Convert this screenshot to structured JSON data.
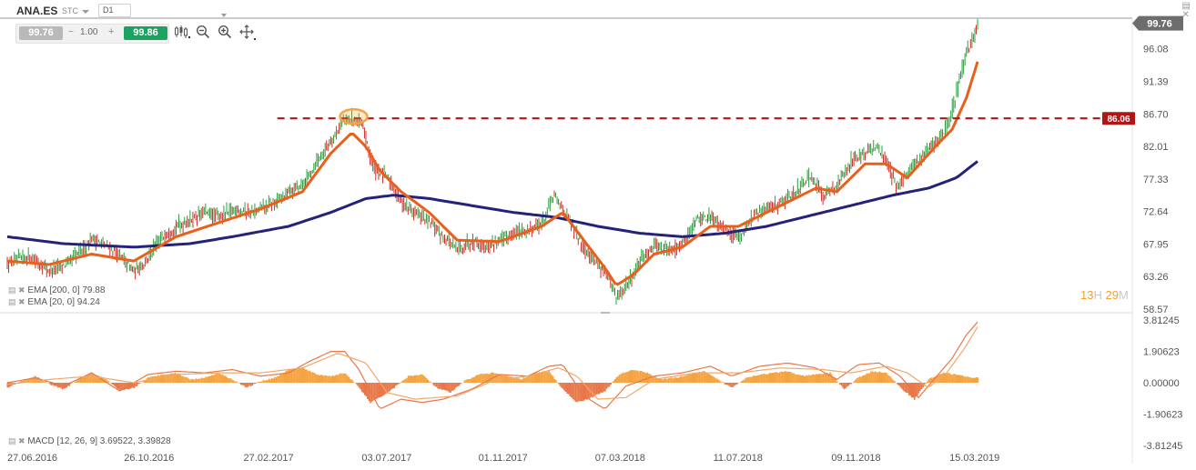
{
  "header": {
    "symbol": "ANA.ES",
    "type": "STC",
    "timeframe": "D1"
  },
  "trade": {
    "bid": "99.76",
    "minus": "−",
    "lot": "1.00",
    "plus": "+",
    "ask": "99.86"
  },
  "tools": [
    "candles-icon",
    "zoom-out-icon",
    "zoom-in-icon",
    "move-icon"
  ],
  "indicators": {
    "ema200_label": "EMA [200, 0] 79.88",
    "ema20_label": "EMA [20, 0] 94.24",
    "macd_label": "MACD [12, 26, 9] 3.69522, 3.39828"
  },
  "timer": {
    "hours": "13",
    "h": "H",
    "minutes": "29",
    "m": "M"
  },
  "colors": {
    "price_badge": "#6d6d6d",
    "level_badge": "#b11616",
    "ema20": "#e8601c",
    "ema200": "#24237a",
    "bull": "#2e9e3e",
    "bear": "#c8302a",
    "macd_pos": "#f4a340",
    "macd_neg": "#e8774a"
  },
  "chart_data": [
    {
      "type": "candlestick",
      "title": "ANA.ES D1",
      "y_ticks": [
        99.76,
        96.08,
        91.39,
        86.7,
        82.01,
        77.33,
        72.64,
        67.95,
        63.26,
        58.57
      ],
      "y_tick_labels": [
        "99.76",
        "96.08",
        "91.39",
        "86.70",
        "82.01",
        "77.33",
        "72.64",
        "67.95",
        "63.26",
        "58.57"
      ],
      "ylim": [
        58.57,
        100.5
      ],
      "x_tick_labels": [
        "27.06.2016",
        "26.10.2016",
        "27.02.2017",
        "03.07.2017",
        "01.11.2017",
        "07.03.2018",
        "11.07.2018",
        "09.11.2018",
        "15.03.2019"
      ],
      "current_price": 99.76,
      "current_price_label": "99.76",
      "level": 86.06,
      "level_label": "86.06",
      "price_path": [
        [
          0,
          65.0
        ],
        [
          15,
          66.2
        ],
        [
          30,
          64.0
        ],
        [
          45,
          65.5
        ],
        [
          60,
          68.8
        ],
        [
          75,
          67.0
        ],
        [
          90,
          64.0
        ],
        [
          100,
          66.0
        ],
        [
          112,
          69.5
        ],
        [
          125,
          71.0
        ],
        [
          140,
          72.5
        ],
        [
          150,
          71.8
        ],
        [
          162,
          73.0
        ],
        [
          175,
          72.5
        ],
        [
          190,
          74.0
        ],
        [
          200,
          75.5
        ],
        [
          210,
          76.5
        ],
        [
          220,
          80.0
        ],
        [
          230,
          83.0
        ],
        [
          238,
          85.5
        ],
        [
          245,
          86.06
        ],
        [
          252,
          85.0
        ],
        [
          260,
          79.0
        ],
        [
          270,
          77.5
        ],
        [
          280,
          74.0
        ],
        [
          290,
          72.5
        ],
        [
          300,
          71.0
        ],
        [
          310,
          69.0
        ],
        [
          320,
          67.0
        ],
        [
          330,
          68.5
        ],
        [
          340,
          67.5
        ],
        [
          350,
          68.5
        ],
        [
          360,
          69.5
        ],
        [
          370,
          70.0
        ],
        [
          380,
          71.0
        ],
        [
          388,
          75.0
        ],
        [
          395,
          73.0
        ],
        [
          405,
          69.0
        ],
        [
          415,
          66.0
        ],
        [
          425,
          64.0
        ],
        [
          433,
          60.0
        ],
        [
          440,
          62.0
        ],
        [
          450,
          65.5
        ],
        [
          460,
          68.0
        ],
        [
          470,
          67.0
        ],
        [
          480,
          68.0
        ],
        [
          490,
          71.5
        ],
        [
          500,
          72.0
        ],
        [
          510,
          70.0
        ],
        [
          520,
          69.0
        ],
        [
          530,
          72.0
        ],
        [
          540,
          73.0
        ],
        [
          550,
          74.0
        ],
        [
          560,
          75.5
        ],
        [
          570,
          77.5
        ],
        [
          580,
          75.0
        ],
        [
          590,
          76.5
        ],
        [
          600,
          80.0
        ],
        [
          610,
          81.0
        ],
        [
          618,
          82.0
        ],
        [
          625,
          80.0
        ],
        [
          632,
          76.0
        ],
        [
          640,
          78.0
        ],
        [
          648,
          80.0
        ],
        [
          655,
          82.0
        ],
        [
          662,
          83.0
        ],
        [
          670,
          86.0
        ],
        [
          675,
          90.0
        ],
        [
          680,
          94.0
        ],
        [
          686,
          97.5
        ],
        [
          690,
          99.76
        ]
      ],
      "ema20_path": [
        [
          0,
          65.5
        ],
        [
          30,
          65.0
        ],
        [
          60,
          66.5
        ],
        [
          90,
          65.5
        ],
        [
          120,
          69.0
        ],
        [
          150,
          71.0
        ],
        [
          180,
          73.0
        ],
        [
          210,
          75.5
        ],
        [
          230,
          81.0
        ],
        [
          245,
          84.0
        ],
        [
          255,
          82.0
        ],
        [
          265,
          78.5
        ],
        [
          280,
          75.5
        ],
        [
          300,
          72.5
        ],
        [
          320,
          68.5
        ],
        [
          350,
          68.3
        ],
        [
          380,
          70.5
        ],
        [
          395,
          72.5
        ],
        [
          410,
          68.5
        ],
        [
          425,
          64.5
        ],
        [
          433,
          62.0
        ],
        [
          445,
          63.5
        ],
        [
          460,
          66.5
        ],
        [
          480,
          67.5
        ],
        [
          500,
          70.5
        ],
        [
          520,
          70.5
        ],
        [
          550,
          73.5
        ],
        [
          575,
          76.0
        ],
        [
          590,
          75.5
        ],
        [
          610,
          79.5
        ],
        [
          625,
          79.5
        ],
        [
          640,
          77.5
        ],
        [
          660,
          82.0
        ],
        [
          672,
          84.5
        ],
        [
          682,
          89.0
        ],
        [
          690,
          94.24
        ]
      ],
      "ema200_path": [
        [
          0,
          69.0
        ],
        [
          40,
          68.0
        ],
        [
          90,
          67.5
        ],
        [
          130,
          68.0
        ],
        [
          160,
          69.0
        ],
        [
          200,
          70.5
        ],
        [
          230,
          72.5
        ],
        [
          255,
          74.5
        ],
        [
          275,
          75.0
        ],
        [
          300,
          74.5
        ],
        [
          330,
          73.5
        ],
        [
          360,
          72.5
        ],
        [
          390,
          71.8
        ],
        [
          420,
          70.5
        ],
        [
          450,
          69.5
        ],
        [
          480,
          69.0
        ],
        [
          510,
          69.5
        ],
        [
          540,
          70.5
        ],
        [
          570,
          72.0
        ],
        [
          600,
          73.5
        ],
        [
          630,
          75.0
        ],
        [
          655,
          76.0
        ],
        [
          675,
          77.5
        ],
        [
          690,
          79.88
        ]
      ]
    },
    {
      "type": "histogram+line",
      "title": "MACD [12, 26, 9]",
      "y_ticks": [
        3.81245,
        1.90623,
        0.0,
        -1.90623,
        -3.81245
      ],
      "y_tick_labels": [
        "3.81245",
        "1.90623",
        "0.00000",
        "-1.90623",
        "-3.81245"
      ],
      "ylim": [
        -3.81245,
        3.81245
      ],
      "macd_last": 3.69522,
      "signal_last": 3.39828,
      "macd_path": [
        [
          0,
          0.0
        ],
        [
          20,
          0.3
        ],
        [
          40,
          -0.2
        ],
        [
          60,
          0.6
        ],
        [
          80,
          -0.5
        ],
        [
          100,
          0.5
        ],
        [
          120,
          0.7
        ],
        [
          140,
          0.6
        ],
        [
          160,
          0.8
        ],
        [
          180,
          0.4
        ],
        [
          200,
          0.6
        ],
        [
          215,
          1.3
        ],
        [
          230,
          1.9
        ],
        [
          240,
          1.9
        ],
        [
          250,
          0.8
        ],
        [
          265,
          -1.6
        ],
        [
          280,
          -1.0
        ],
        [
          295,
          -1.2
        ],
        [
          310,
          -1.0
        ],
        [
          330,
          -0.4
        ],
        [
          350,
          0.5
        ],
        [
          370,
          0.4
        ],
        [
          385,
          1.0
        ],
        [
          395,
          1.1
        ],
        [
          410,
          -0.8
        ],
        [
          425,
          -1.6
        ],
        [
          440,
          -0.2
        ],
        [
          460,
          0.4
        ],
        [
          480,
          0.6
        ],
        [
          500,
          1.0
        ],
        [
          515,
          0.4
        ],
        [
          535,
          1.0
        ],
        [
          555,
          1.2
        ],
        [
          575,
          0.9
        ],
        [
          590,
          0.2
        ],
        [
          605,
          1.1
        ],
        [
          620,
          1.2
        ],
        [
          635,
          0.4
        ],
        [
          648,
          -0.9
        ],
        [
          660,
          0.3
        ],
        [
          672,
          1.5
        ],
        [
          682,
          2.9
        ],
        [
          690,
          3.69522
        ]
      ],
      "signal_path": [
        [
          0,
          -0.1
        ],
        [
          30,
          0.2
        ],
        [
          60,
          0.4
        ],
        [
          90,
          0.0
        ],
        [
          120,
          0.5
        ],
        [
          150,
          0.6
        ],
        [
          180,
          0.6
        ],
        [
          210,
          0.9
        ],
        [
          235,
          1.8
        ],
        [
          255,
          1.2
        ],
        [
          270,
          -0.6
        ],
        [
          290,
          -1.0
        ],
        [
          320,
          -0.8
        ],
        [
          345,
          0.1
        ],
        [
          370,
          0.4
        ],
        [
          392,
          0.9
        ],
        [
          405,
          0.4
        ],
        [
          420,
          -1.0
        ],
        [
          440,
          -0.9
        ],
        [
          460,
          0.2
        ],
        [
          490,
          0.6
        ],
        [
          520,
          0.6
        ],
        [
          550,
          0.9
        ],
        [
          580,
          0.8
        ],
        [
          600,
          0.6
        ],
        [
          625,
          1.0
        ],
        [
          640,
          0.6
        ],
        [
          655,
          -0.3
        ],
        [
          668,
          0.6
        ],
        [
          680,
          2.0
        ],
        [
          690,
          3.39828
        ]
      ],
      "histogram_points": [
        [
          0,
          -0.3
        ],
        [
          10,
          0.1
        ],
        [
          20,
          0.4
        ],
        [
          30,
          -0.1
        ],
        [
          40,
          -0.4
        ],
        [
          50,
          0.2
        ],
        [
          60,
          0.6
        ],
        [
          70,
          0.2
        ],
        [
          80,
          -0.5
        ],
        [
          90,
          -0.3
        ],
        [
          100,
          0.3
        ],
        [
          110,
          0.5
        ],
        [
          120,
          0.6
        ],
        [
          130,
          0.2
        ],
        [
          140,
          0.3
        ],
        [
          150,
          0.6
        ],
        [
          160,
          0.2
        ],
        [
          170,
          -0.3
        ],
        [
          180,
          0.1
        ],
        [
          190,
          0.3
        ],
        [
          200,
          0.8
        ],
        [
          210,
          0.9
        ],
        [
          220,
          0.5
        ],
        [
          230,
          0.4
        ],
        [
          240,
          0.6
        ],
        [
          250,
          -0.3
        ],
        [
          258,
          -1.2
        ],
        [
          265,
          -0.9
        ],
        [
          275,
          -0.3
        ],
        [
          285,
          0.4
        ],
        [
          295,
          0.5
        ],
        [
          305,
          -0.3
        ],
        [
          315,
          -0.6
        ],
        [
          325,
          0.1
        ],
        [
          335,
          0.5
        ],
        [
          345,
          0.6
        ],
        [
          355,
          0.4
        ],
        [
          365,
          0.2
        ],
        [
          375,
          0.6
        ],
        [
          385,
          0.7
        ],
        [
          395,
          -0.4
        ],
        [
          405,
          -1.2
        ],
        [
          415,
          -0.9
        ],
        [
          425,
          -0.5
        ],
        [
          435,
          0.5
        ],
        [
          445,
          0.8
        ],
        [
          455,
          0.6
        ],
        [
          465,
          0.2
        ],
        [
          475,
          0.3
        ],
        [
          485,
          0.5
        ],
        [
          495,
          0.7
        ],
        [
          505,
          0.2
        ],
        [
          515,
          -0.3
        ],
        [
          525,
          0.3
        ],
        [
          535,
          0.5
        ],
        [
          545,
          0.6
        ],
        [
          555,
          0.7
        ],
        [
          565,
          0.4
        ],
        [
          575,
          0.5
        ],
        [
          585,
          0.6
        ],
        [
          595,
          -0.4
        ],
        [
          605,
          0.3
        ],
        [
          615,
          0.7
        ],
        [
          625,
          0.6
        ],
        [
          635,
          -0.3
        ],
        [
          645,
          -1.0
        ],
        [
          655,
          0.2
        ],
        [
          665,
          0.6
        ],
        [
          675,
          0.5
        ],
        [
          685,
          0.3
        ],
        [
          690,
          0.3
        ]
      ]
    }
  ]
}
